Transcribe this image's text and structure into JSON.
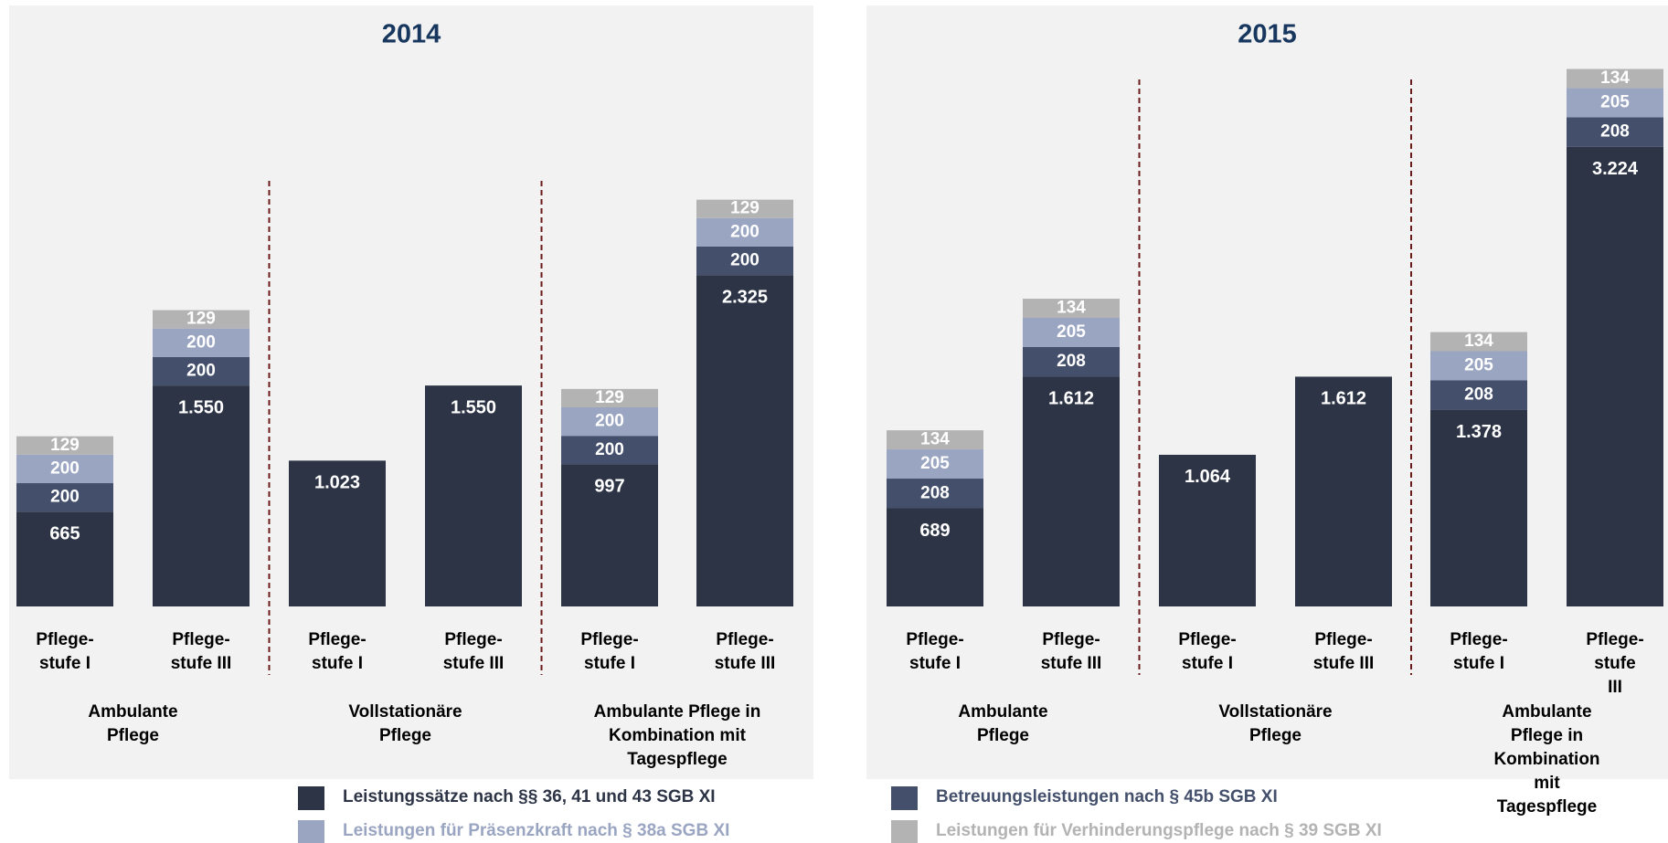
{
  "chart_data": [
    {
      "type": "stacked_bar",
      "title": "2014",
      "categories": [
        "Pflege-\nstufe I",
        "Pflege-\nstufe III",
        "Pflege-\nstufe I",
        "Pflege-\nstufe III",
        "Pflege-\nstufe I",
        "Pflege-\nstufe III"
      ],
      "groups": [
        "Ambulante\nPflege",
        "Vollstationäre\nPflege",
        "Ambulante Pflege in\nKombination mit\nTagespflege"
      ],
      "ylim": [
        0,
        3800
      ],
      "series": [
        {
          "name": "Leistungssätze nach §§ 36, 41 und 43 SGB XI",
          "color": "#2d3446",
          "values": [
            665,
            1550,
            1023,
            1550,
            997,
            2325
          ],
          "value_labels": [
            "665",
            "1.550",
            "1.023",
            "1.550",
            "997",
            "2.325"
          ]
        },
        {
          "name": "Betreuungsleistungen nach § 45b SGB XI",
          "color": "#434f6b",
          "values": [
            200,
            200,
            null,
            null,
            200,
            200
          ]
        },
        {
          "name": "Leistungen für Präsenzkraft nach § 38a SGB XI",
          "color": "#9aa5c2",
          "values": [
            200,
            200,
            null,
            null,
            200,
            200
          ]
        },
        {
          "name": "Leistungen für Verhinderungspflege nach § 39 SGB XI",
          "color": "#b3b3b3",
          "values": [
            129,
            129,
            null,
            null,
            129,
            129
          ]
        }
      ]
    },
    {
      "type": "stacked_bar",
      "title": "2015",
      "categories": [
        "Pflege-\nstufe I",
        "Pflege-\nstufe III",
        "Pflege-\nstufe I",
        "Pflege-\nstufe III",
        "Pflege-\nstufe I",
        "Pflege-\nstufe III"
      ],
      "groups": [
        "Ambulante\nPflege",
        "Vollstationäre\nPflege",
        "Ambulante Pflege in\nKombination mit\nTagespflege"
      ],
      "ylim": [
        0,
        3800
      ],
      "series": [
        {
          "name": "Leistungssätze nach §§ 36, 41 und 43 SGB XI",
          "color": "#2d3446",
          "values": [
            689,
            1612,
            1064,
            1612,
            1378,
            3224
          ],
          "value_labels": [
            "689",
            "1.612",
            "1.064",
            "1.612",
            "1.378",
            "3.224"
          ]
        },
        {
          "name": "Betreuungsleistungen nach § 45b SGB XI",
          "color": "#434f6b",
          "values": [
            208,
            208,
            null,
            null,
            208,
            208
          ]
        },
        {
          "name": "Leistungen für Präsenzkraft nach § 38a SGB XI",
          "color": "#9aa5c2",
          "values": [
            205,
            205,
            null,
            null,
            205,
            205
          ]
        },
        {
          "name": "Leistungen für Verhinderungspflege nach § 39 SGB XI",
          "color": "#b3b3b3",
          "values": [
            134,
            134,
            null,
            null,
            134,
            134
          ]
        }
      ]
    }
  ]
}
